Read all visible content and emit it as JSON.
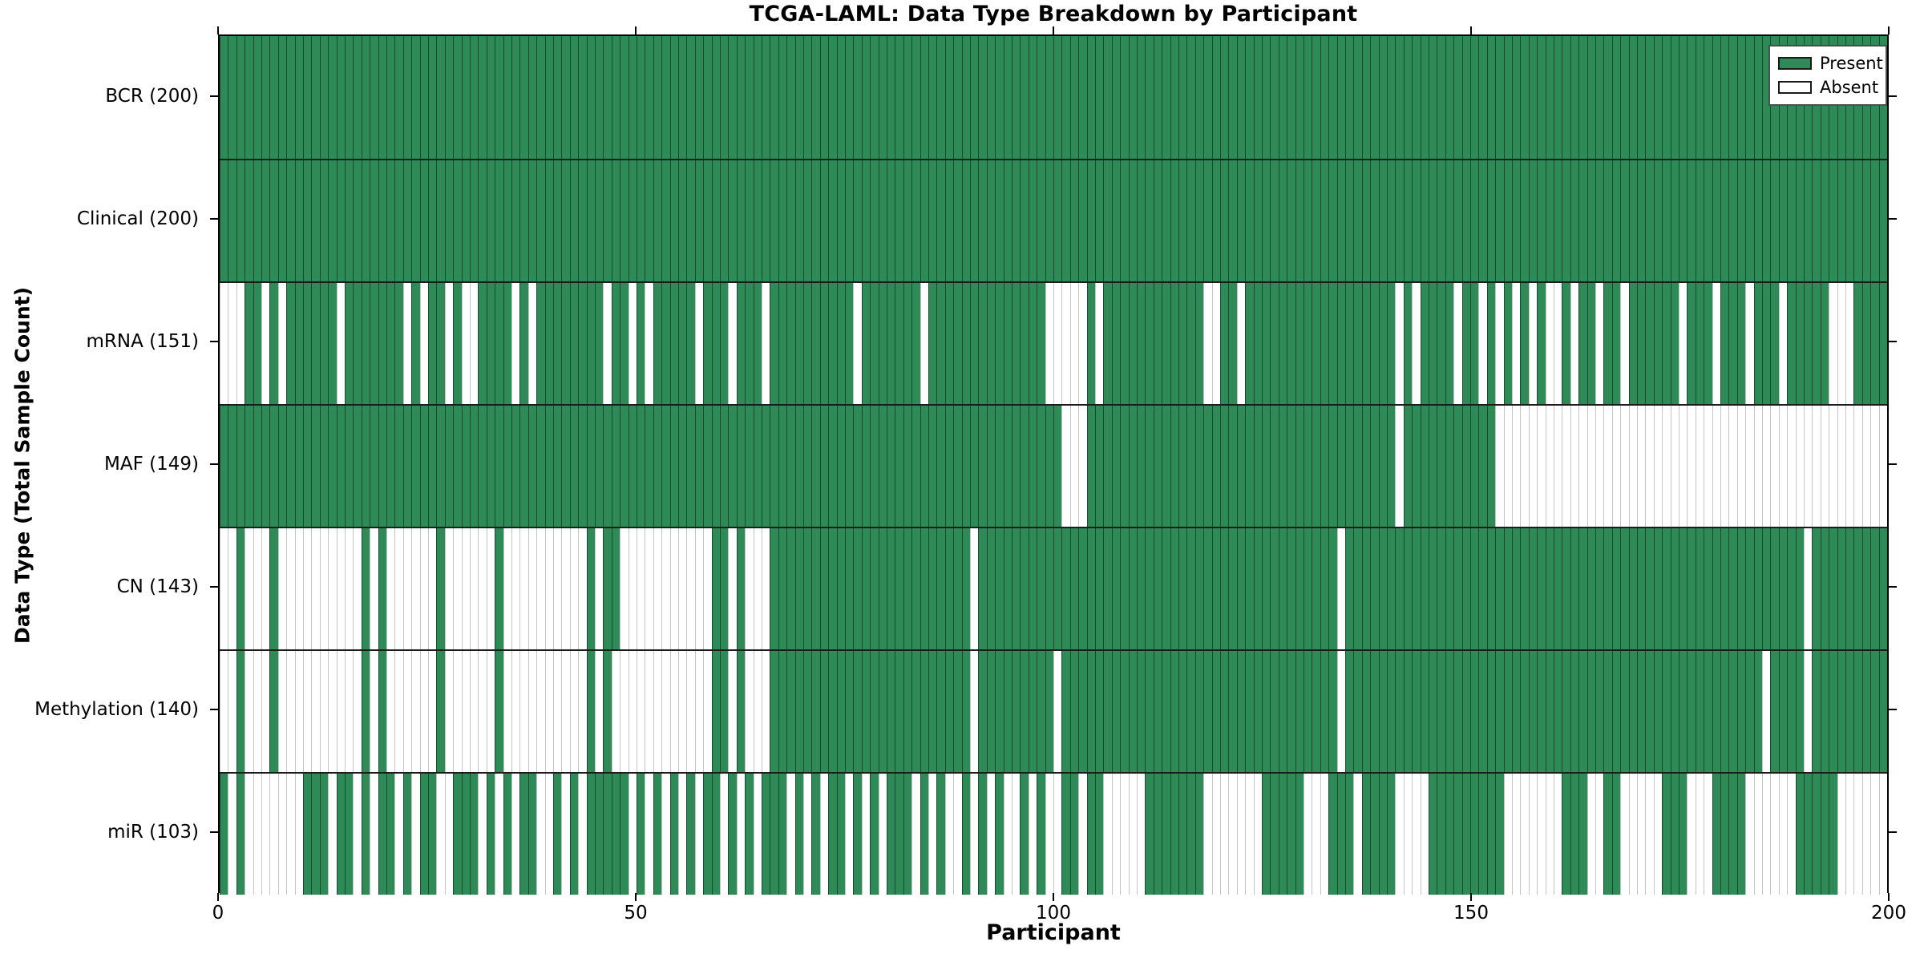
{
  "title": "TCGA-LAML: Data Type Breakdown by Participant",
  "legend": {
    "present_label": "Present",
    "absent_label": "Absent"
  },
  "colors": {
    "present": "#2e8b57",
    "absent": "#ffffff",
    "bar_edge": "rgba(0,0,0,0.45)",
    "axis": "#000000"
  },
  "chart_data": {
    "type": "heatmap",
    "title": "TCGA-LAML: Data Type Breakdown by Participant",
    "xlabel": "Participant",
    "ylabel": "Data Type (Total Sample Count)",
    "x_ticks": [
      0,
      50,
      100,
      150,
      200
    ],
    "x_range": [
      0,
      200
    ],
    "n_participants": 200,
    "grid": false,
    "legend_position": "upper right",
    "legend_entries": [
      {
        "label": "Present",
        "color": "#2e8b57"
      },
      {
        "label": "Absent",
        "color": "#ffffff"
      }
    ],
    "rows": [
      {
        "label": "BCR (200)",
        "name": "BCR",
        "present_count": 200,
        "absent": []
      },
      {
        "label": "Clinical (200)",
        "name": "Clinical",
        "present_count": 200,
        "absent": []
      },
      {
        "label": "mRNA (151)",
        "name": "mRNA",
        "present_count": 151,
        "absent": [
          0,
          1,
          2,
          5,
          7,
          14,
          22,
          24,
          27,
          29,
          30,
          35,
          37,
          46,
          49,
          51,
          57,
          61,
          65,
          76,
          84,
          99,
          100,
          101,
          102,
          103,
          105,
          118,
          119,
          122,
          141,
          143,
          148,
          151,
          153,
          155,
          157,
          159,
          160,
          162,
          165,
          168,
          175,
          179,
          183,
          187,
          193,
          194,
          195
        ]
      },
      {
        "label": "MAF (149)",
        "name": "MAF",
        "present_count": 149,
        "absent": [
          101,
          102,
          103,
          141,
          153,
          154,
          155,
          156,
          157,
          158,
          159,
          160,
          161,
          162,
          163,
          164,
          165,
          166,
          167,
          168,
          169,
          170,
          171,
          172,
          173,
          174,
          175,
          176,
          177,
          178,
          179,
          180,
          181,
          182,
          183,
          184,
          185,
          186,
          187,
          188,
          189,
          190,
          191,
          192,
          193,
          194,
          195,
          196,
          197,
          198,
          199
        ]
      },
      {
        "label": "CN (143)",
        "name": "CN",
        "present_count": 143,
        "absent": [
          0,
          1,
          3,
          4,
          5,
          7,
          8,
          9,
          10,
          11,
          12,
          13,
          14,
          15,
          16,
          18,
          20,
          21,
          22,
          23,
          24,
          25,
          27,
          28,
          29,
          30,
          31,
          32,
          34,
          35,
          36,
          37,
          38,
          39,
          40,
          41,
          42,
          43,
          45,
          48,
          49,
          50,
          51,
          52,
          53,
          54,
          55,
          56,
          57,
          58,
          61,
          63,
          64,
          65,
          90,
          134,
          190
        ]
      },
      {
        "label": "Methylation (140)",
        "name": "Methylation",
        "present_count": 140,
        "absent": [
          0,
          1,
          3,
          4,
          5,
          7,
          8,
          9,
          10,
          11,
          12,
          13,
          14,
          15,
          16,
          18,
          20,
          21,
          22,
          23,
          24,
          25,
          27,
          28,
          29,
          30,
          31,
          32,
          34,
          35,
          36,
          37,
          38,
          39,
          40,
          41,
          42,
          43,
          45,
          47,
          48,
          49,
          50,
          51,
          52,
          53,
          54,
          55,
          56,
          57,
          58,
          61,
          63,
          64,
          65,
          90,
          100,
          134,
          185,
          190
        ]
      },
      {
        "label": "miR (103)",
        "name": "miR",
        "present_count": 103,
        "absent": [
          1,
          3,
          4,
          5,
          6,
          7,
          8,
          9,
          13,
          16,
          18,
          21,
          23,
          26,
          27,
          31,
          33,
          35,
          38,
          39,
          41,
          43,
          49,
          51,
          53,
          55,
          57,
          60,
          62,
          64,
          68,
          70,
          72,
          75,
          77,
          79,
          83,
          85,
          87,
          88,
          90,
          92,
          94,
          95,
          97,
          99,
          100,
          103,
          106,
          107,
          108,
          109,
          110,
          118,
          119,
          120,
          121,
          122,
          123,
          124,
          130,
          131,
          132,
          136,
          141,
          142,
          143,
          144,
          154,
          155,
          156,
          157,
          158,
          159,
          160,
          164,
          165,
          168,
          169,
          170,
          171,
          172,
          176,
          177,
          178,
          183,
          184,
          185,
          186,
          187,
          188,
          194,
          195,
          196,
          197,
          198,
          199
        ]
      }
    ]
  }
}
